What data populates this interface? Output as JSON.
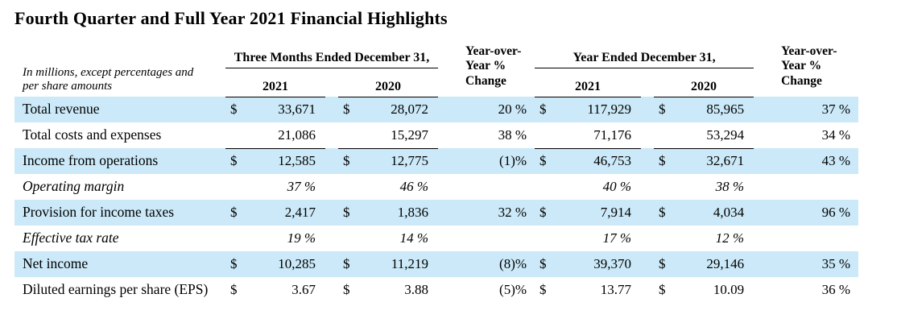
{
  "title": "Fourth Quarter and Full Year 2021 Financial Highlights",
  "colors": {
    "row_shade": "#CBE9F8",
    "rule": "#000000",
    "text": "#000000",
    "background": "#FFFFFF"
  },
  "table": {
    "note": "In millions, except percentages and per share amounts",
    "group_headers": [
      "Three Months Ended December 31,",
      "Year Ended December 31,"
    ],
    "yoy_lines": [
      "Year-over-",
      "Year %",
      "Change"
    ],
    "year_headers": [
      "2021",
      "2020",
      "2021",
      "2020"
    ],
    "rows": [
      {
        "label": "Total revenue",
        "shaded": true,
        "italic": false,
        "underline": false,
        "cells": [
          "$",
          "33,671",
          "$",
          "28,072",
          "20 %",
          "$",
          "117,929",
          "$",
          "85,965",
          "37 %"
        ]
      },
      {
        "label": "Total costs and expenses",
        "shaded": false,
        "italic": false,
        "underline": true,
        "cells": [
          "",
          "21,086",
          "",
          "15,297",
          "38 %",
          "",
          "71,176",
          "",
          "53,294",
          "34 %"
        ]
      },
      {
        "label": "Income from operations",
        "shaded": true,
        "italic": false,
        "underline": false,
        "cells": [
          "$",
          "12,585",
          "$",
          "12,775",
          "(1)%",
          "$",
          "46,753",
          "$",
          "32,671",
          "43 %"
        ]
      },
      {
        "label": "Operating margin",
        "shaded": false,
        "italic": true,
        "underline": false,
        "cells": [
          "",
          "37 %",
          "",
          "46 %",
          "",
          "",
          "40 %",
          "",
          "38 %",
          ""
        ]
      },
      {
        "label": "Provision for income taxes",
        "shaded": true,
        "italic": false,
        "underline": false,
        "cells": [
          "$",
          "2,417",
          "$",
          "1,836",
          "32 %",
          "$",
          "7,914",
          "$",
          "4,034",
          "96 %"
        ]
      },
      {
        "label": "Effective tax rate",
        "shaded": false,
        "italic": true,
        "underline": false,
        "cells": [
          "",
          "19 %",
          "",
          "14 %",
          "",
          "",
          "17 %",
          "",
          "12 %",
          ""
        ]
      },
      {
        "label": "Net income",
        "shaded": true,
        "italic": false,
        "underline": false,
        "cells": [
          "$",
          "10,285",
          "$",
          "11,219",
          "(8)%",
          "$",
          "39,370",
          "$",
          "29,146",
          "35 %"
        ]
      },
      {
        "label": "Diluted earnings per share (EPS)",
        "shaded": false,
        "italic": false,
        "underline": false,
        "cells": [
          "$",
          "3.67",
          "$",
          "3.88",
          "(5)%",
          "$",
          "13.77",
          "$",
          "10.09",
          "36 %"
        ]
      }
    ]
  }
}
